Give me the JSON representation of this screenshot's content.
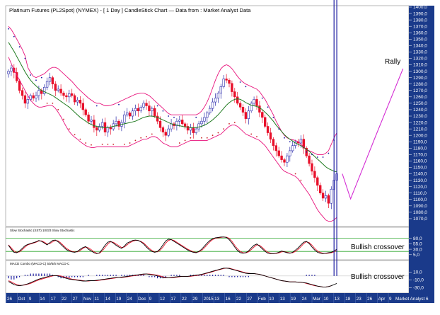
{
  "title": "Platinum Futures (PL2Spot) (NYMEX) - [ 1 Day ] CandleStick Chart — Data from : Market Analyst Data",
  "watermark": "Market Analyst 6",
  "colors": {
    "bull": "#2a2aaa",
    "bear": "#e8102a",
    "bollinger": "#e8137c",
    "ma": "#1f7a1f",
    "sar_bear": "#1a1aa0",
    "sar_bull": "#c81e1e",
    "projection": "#d42fd4",
    "stoch_k": "#000000",
    "stoch_d": "#e8102a",
    "stoch_level": "#2ea82e",
    "macd_line": "#000000",
    "macd_signal": "#e8102a",
    "axis_bg": "#1a3a8a",
    "axis_text": "#ffffff"
  },
  "annotations": {
    "rally": "Rally",
    "stoch_crossover": "Bullish crossover",
    "macd_crossover": "Bullish crossover"
  },
  "chart_data": [
    {
      "type": "candlestick",
      "panel": "price",
      "title": "Platinum Futures (PL2Spot) (NYMEX) - [ 1 Day ] CandleStick Chart — Data from : Market Analyst Data",
      "ylim": [
        1060,
        1400
      ],
      "y_ticks": [
        "1400,0",
        "1390,0",
        "1380,0",
        "1370,0",
        "1360,0",
        "1350,0",
        "1340,0",
        "1330,0",
        "1320,0",
        "1310,0",
        "1300,0",
        "1290,0",
        "1280,0",
        "1270,0",
        "1260,0",
        "1250,0",
        "1240,0",
        "1230,0",
        "1220,0",
        "1210,0",
        "1200,0",
        "1190,0",
        "1180,0",
        "1170,0",
        "1160,0",
        "1150,0",
        "1140,0",
        "1130,0",
        "1120,0",
        "1110,0",
        "1100,0",
        "1090,0",
        "1080,0",
        "1070,0"
      ],
      "y_tick_values": [
        1400,
        1390,
        1380,
        1370,
        1360,
        1350,
        1340,
        1330,
        1320,
        1310,
        1300,
        1290,
        1280,
        1270,
        1260,
        1250,
        1240,
        1230,
        1220,
        1210,
        1200,
        1190,
        1180,
        1170,
        1160,
        1150,
        1140,
        1130,
        1120,
        1110,
        1100,
        1090,
        1080,
        1070
      ],
      "close": [
        1300,
        1305,
        1298,
        1285,
        1270,
        1262,
        1250,
        1256,
        1262,
        1258,
        1262,
        1270,
        1265,
        1275,
        1284,
        1290,
        1280,
        1270,
        1272,
        1266,
        1262,
        1260,
        1265,
        1262,
        1252,
        1255,
        1250,
        1240,
        1232,
        1222,
        1224,
        1212,
        1208,
        1214,
        1220,
        1205,
        1212,
        1210,
        1218,
        1222,
        1214,
        1220,
        1232,
        1235,
        1230,
        1238,
        1242,
        1238,
        1244,
        1250,
        1246,
        1238,
        1242,
        1230,
        1222,
        1212,
        1205,
        1200,
        1210,
        1218,
        1215,
        1222,
        1224,
        1218,
        1214,
        1208,
        1212,
        1204,
        1210,
        1218,
        1222,
        1228,
        1235,
        1242,
        1252,
        1258,
        1266,
        1276,
        1288,
        1286,
        1281,
        1268,
        1260,
        1250,
        1244,
        1236,
        1226,
        1238,
        1250,
        1256,
        1246,
        1236,
        1228,
        1214,
        1204,
        1194,
        1184,
        1176,
        1168,
        1162,
        1158,
        1168,
        1176,
        1184,
        1190,
        1188,
        1194,
        1180,
        1168,
        1156,
        1144,
        1134,
        1122,
        1110,
        1102,
        1106,
        1094,
        1116,
        1130,
        1140
      ],
      "ma20": [
        1345,
        1338,
        1331,
        1323,
        1315,
        1307,
        1299,
        1292,
        1286,
        1281,
        1277,
        1273,
        1270,
        1268,
        1266,
        1264,
        1262,
        1259,
        1256,
        1253,
        1250,
        1247,
        1244,
        1240,
        1236,
        1232,
        1228,
        1225,
        1222,
        1219,
        1217,
        1215,
        1214,
        1213,
        1212,
        1212,
        1212,
        1213,
        1214,
        1215,
        1216,
        1217,
        1218,
        1219,
        1220,
        1221,
        1222,
        1224,
        1226,
        1228,
        1229,
        1230,
        1230,
        1229,
        1228,
        1226,
        1224,
        1222,
        1220,
        1218,
        1217,
        1216,
        1215,
        1214,
        1213,
        1213,
        1212,
        1212,
        1212,
        1213,
        1214,
        1216,
        1218,
        1221,
        1224,
        1228,
        1232,
        1237,
        1242,
        1247,
        1251,
        1254,
        1256,
        1257,
        1256,
        1254,
        1251,
        1249,
        1247,
        1246,
        1245,
        1243,
        1240,
        1236,
        1232,
        1227,
        1222,
        1216,
        1211,
        1206,
        1201,
        1197,
        1194,
        1191,
        1188,
        1186,
        1184,
        1181,
        1178,
        1175,
        1171,
        1167,
        1163,
        1159,
        1155,
        1151,
        1148,
        1146,
        1144,
        1143
      ],
      "bb_upper": [
        1370,
        1365,
        1358,
        1350,
        1342,
        1334,
        1324,
        1306,
        1298,
        1292,
        1290,
        1292,
        1294,
        1296,
        1300,
        1304,
        1306,
        1306,
        1304,
        1300,
        1296,
        1292,
        1288,
        1284,
        1279,
        1274,
        1270,
        1266,
        1262,
        1258,
        1255,
        1252,
        1250,
        1250,
        1248,
        1246,
        1246,
        1247,
        1248,
        1250,
        1252,
        1254,
        1256,
        1258,
        1260,
        1262,
        1264,
        1265,
        1266,
        1266,
        1264,
        1262,
        1258,
        1254,
        1250,
        1246,
        1242,
        1238,
        1234,
        1232,
        1232,
        1232,
        1232,
        1232,
        1232,
        1232,
        1232,
        1232,
        1232,
        1234,
        1238,
        1244,
        1252,
        1262,
        1274,
        1286,
        1296,
        1304,
        1308,
        1310,
        1308,
        1304,
        1298,
        1292,
        1287,
        1283,
        1280,
        1278,
        1276,
        1274,
        1272,
        1268,
        1262,
        1256,
        1248,
        1240,
        1232,
        1222,
        1214,
        1206,
        1200,
        1196,
        1194,
        1193,
        1192,
        1190,
        1186,
        1182,
        1178,
        1176,
        1174,
        1172,
        1170,
        1170,
        1170,
        1172,
        1176,
        1186,
        1196,
        1204
      ],
      "bb_lower": [
        1322,
        1312,
        1302,
        1294,
        1286,
        1278,
        1270,
        1262,
        1255,
        1250,
        1246,
        1244,
        1244,
        1245,
        1246,
        1247,
        1246,
        1242,
        1236,
        1229,
        1221,
        1213,
        1206,
        1201,
        1197,
        1194,
        1190,
        1187,
        1184,
        1182,
        1181,
        1181,
        1182,
        1182,
        1182,
        1182,
        1182,
        1182,
        1182,
        1182,
        1182,
        1182,
        1182,
        1182,
        1184,
        1186,
        1188,
        1190,
        1192,
        1194,
        1194,
        1196,
        1198,
        1198,
        1196,
        1192,
        1188,
        1186,
        1184,
        1182,
        1182,
        1182,
        1184,
        1186,
        1188,
        1190,
        1192,
        1192,
        1192,
        1192,
        1192,
        1192,
        1192,
        1194,
        1196,
        1198,
        1200,
        1202,
        1206,
        1210,
        1214,
        1216,
        1216,
        1214,
        1210,
        1206,
        1202,
        1200,
        1198,
        1196,
        1194,
        1192,
        1188,
        1184,
        1178,
        1172,
        1166,
        1160,
        1154,
        1148,
        1144,
        1142,
        1140,
        1138,
        1136,
        1132,
        1126,
        1120,
        1114,
        1108,
        1100,
        1092,
        1084,
        1078,
        1073,
        1068,
        1066,
        1066,
        1068,
        1072
      ],
      "projection": [
        [
          121,
          1140
        ],
        [
          124,
          1101
        ],
        [
          133,
          1198
        ],
        [
          143,
          1304
        ]
      ],
      "projection_note": "projection points are [day index, price]"
    },
    {
      "type": "line",
      "panel": "stochastic",
      "title": "Slow Stochastic (SST) 10/3/3 Slow Stochastic",
      "ylim": [
        -15,
        95
      ],
      "levels": [
        80,
        20
      ],
      "y_ticks": [
        "80,0",
        "55,0",
        "30,0",
        "5,0"
      ],
      "y_tick_values": [
        80,
        55,
        30,
        5
      ],
      "series": [
        {
          "name": "%K",
          "values": [
            48,
            30,
            16,
            14,
            22,
            34,
            46,
            52,
            56,
            60,
            64,
            70,
            66,
            58,
            50,
            60,
            70,
            72,
            64,
            52,
            40,
            28,
            22,
            18,
            16,
            20,
            30,
            38,
            42,
            30,
            22,
            14,
            10,
            14,
            30,
            48,
            62,
            66,
            58,
            48,
            40,
            34,
            44,
            58,
            64,
            70,
            72,
            70,
            64,
            54,
            40,
            28,
            20,
            16,
            20,
            32,
            50,
            68,
            76,
            74,
            66,
            58,
            50,
            42,
            34,
            26,
            20,
            16,
            14,
            20,
            30,
            44,
            58,
            70,
            78,
            82,
            84,
            86,
            86,
            84,
            74,
            58,
            40,
            24,
            14,
            12,
            14,
            22,
            36,
            48,
            54,
            44,
            32,
            20,
            12,
            10,
            10,
            12,
            16,
            22,
            18,
            14,
            12,
            16,
            26,
            36,
            50,
            62,
            66,
            56,
            40,
            26,
            16,
            12,
            10,
            12,
            14,
            16,
            22,
            30
          ]
        },
        {
          "name": "%D",
          "values": [
            50,
            36,
            22,
            16,
            18,
            28,
            40,
            50,
            54,
            58,
            62,
            68,
            68,
            62,
            54,
            56,
            64,
            70,
            68,
            58,
            46,
            34,
            26,
            20,
            18,
            18,
            24,
            34,
            40,
            36,
            28,
            18,
            12,
            12,
            22,
            38,
            54,
            64,
            62,
            54,
            46,
            38,
            40,
            50,
            60,
            66,
            70,
            70,
            66,
            58,
            46,
            34,
            24,
            18,
            18,
            26,
            40,
            58,
            70,
            74,
            70,
            62,
            54,
            46,
            38,
            30,
            24,
            18,
            16,
            18,
            24,
            36,
            50,
            64,
            74,
            80,
            82,
            84,
            86,
            85,
            80,
            66,
            48,
            32,
            20,
            14,
            13,
            18,
            28,
            40,
            50,
            48,
            38,
            26,
            16,
            12,
            10,
            11,
            13,
            18,
            19,
            16,
            13,
            14,
            20,
            30,
            42,
            56,
            64,
            60,
            48,
            34,
            22,
            15,
            12,
            11,
            12,
            14,
            18,
            24
          ]
        }
      ]
    },
    {
      "type": "line",
      "panel": "macd",
      "title": "MACD Combo (MACD-C) 50/5/5 MACD-C",
      "ylim": [
        -40,
        25
      ],
      "y_ticks": [
        "10,0",
        "-10,0",
        "-30,0"
      ],
      "y_tick_values": [
        10,
        -10,
        -30
      ],
      "series": [
        {
          "name": "MACD",
          "values": [
            -14,
            -18,
            -22,
            -24,
            -25,
            -24,
            -22,
            -20,
            -17,
            -14,
            -11,
            -8,
            -6,
            -4,
            -2,
            0,
            1,
            1,
            0,
            -2,
            -4,
            -6,
            -8,
            -9,
            -10,
            -11,
            -12,
            -13,
            -13,
            -12,
            -12,
            -12,
            -11,
            -10,
            -9,
            -8,
            -7,
            -6,
            -5,
            -4,
            -4,
            -3,
            -2,
            -1,
            0,
            1,
            2,
            3,
            4,
            5,
            5,
            4,
            3,
            2,
            0,
            -2,
            -4,
            -5,
            -5,
            -4,
            -3,
            -2,
            -1,
            -1,
            -1,
            -1,
            0,
            1,
            2,
            3,
            4,
            6,
            8,
            10,
            12,
            14,
            16,
            18,
            20,
            20,
            19,
            17,
            15,
            13,
            11,
            9,
            7,
            6,
            6,
            6,
            5,
            4,
            2,
            0,
            -2,
            -4,
            -6,
            -8,
            -10,
            -12,
            -13,
            -14,
            -15,
            -15,
            -15,
            -16,
            -16,
            -17,
            -18,
            -20,
            -22,
            -24,
            -26,
            -27,
            -28,
            -28,
            -27,
            -25,
            -22,
            -19
          ]
        },
        {
          "name": "Signal",
          "values": [
            -12,
            -15,
            -19,
            -22,
            -24,
            -24,
            -23,
            -21,
            -19,
            -16,
            -13,
            -10,
            -8,
            -6,
            -4,
            -2,
            0,
            1,
            1,
            0,
            -2,
            -4,
            -6,
            -8,
            -9,
            -10,
            -11,
            -12,
            -13,
            -13,
            -12,
            -12,
            -12,
            -11,
            -10,
            -9,
            -8,
            -7,
            -6,
            -5,
            -4,
            -4,
            -3,
            -2,
            -1,
            0,
            1,
            2,
            3,
            4,
            5,
            5,
            4,
            3,
            2,
            0,
            -2,
            -4,
            -5,
            -5,
            -4,
            -3,
            -2,
            -1,
            -1,
            -1,
            -1,
            0,
            1,
            2,
            3,
            5,
            7,
            9,
            11,
            13,
            15,
            17,
            19,
            20,
            20,
            18,
            16,
            14,
            12,
            10,
            8,
            7,
            6,
            6,
            5,
            4,
            2,
            0,
            -2,
            -4,
            -6,
            -8,
            -10,
            -12,
            -13,
            -14,
            -15,
            -15,
            -15,
            -16,
            -16,
            -17,
            -19,
            -21,
            -23,
            -25,
            -26,
            -27,
            -28,
            -28,
            -27,
            -25
          ]
        }
      ]
    }
  ],
  "x_axis": {
    "labels": [
      "26",
      "Oct",
      "9",
      "14",
      "17",
      "22",
      "27",
      "Nov",
      "11",
      "14",
      "19",
      "24",
      "Dec",
      "9",
      "12",
      "17",
      "22",
      "29",
      "2015",
      "13",
      "16",
      "22",
      "27",
      "Feb",
      "10",
      "13",
      "19",
      "24",
      "Mar",
      "10",
      "13",
      "18",
      "23",
      "26",
      "Apr",
      "9",
      "Market Analyst 6"
    ]
  }
}
